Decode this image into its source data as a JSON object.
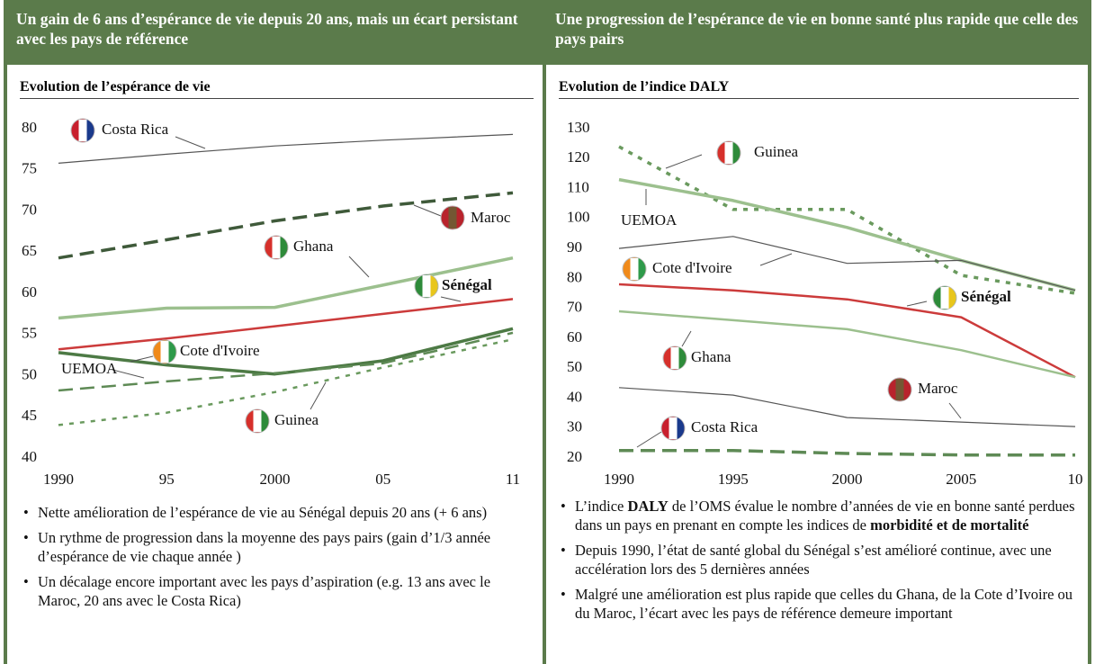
{
  "chart_data": [
    {
      "type": "line",
      "title": "Un gain de 6 ans d’espérance de vie depuis 20 ans, mais un écart persistant avec les pays de référence",
      "subtitle": "Evolution de l’espérance de vie",
      "x": [
        1990,
        1995,
        2000,
        2005,
        2011
      ],
      "xlim": [
        1990,
        2011
      ],
      "xticks": [
        1990,
        {
          "value": 1995,
          "label": "95"
        },
        2000,
        {
          "value": 2005,
          "label": "05"
        },
        {
          "value": 2011,
          "label": "11"
        }
      ],
      "ylim": [
        40,
        80
      ],
      "yticks": [
        40,
        45,
        50,
        55,
        60,
        65,
        70,
        75,
        80
      ],
      "series": [
        {
          "name": "Costa Rica",
          "color": "#555555",
          "line_style": "solid",
          "weight": "thin",
          "values": [
            75.8,
            76.9,
            77.9,
            78.6,
            79.3
          ]
        },
        {
          "name": "Maroc",
          "color": "#3f5a3a",
          "line_style": "dashed",
          "weight": "thick",
          "values": [
            64.3,
            66.5,
            68.8,
            70.6,
            72.2
          ]
        },
        {
          "name": "Ghana",
          "color": "#9cc08e",
          "line_style": "solid",
          "weight": "thick",
          "values": [
            57.0,
            58.2,
            58.3,
            61.0,
            64.3
          ]
        },
        {
          "name": "Sénégal",
          "color": "#cc3b3b",
          "line_style": "solid",
          "weight": "medium",
          "values": [
            53.2,
            54.5,
            56.0,
            57.5,
            59.3
          ]
        },
        {
          "name": "Cote d'Ivoire",
          "color": "#4d7a45",
          "line_style": "solid",
          "weight": "thick",
          "values": [
            52.8,
            51.3,
            50.2,
            51.8,
            55.7
          ]
        },
        {
          "name": "UEMOA",
          "color": "#5e8a55",
          "line_style": "dashed",
          "weight": "medium",
          "values": [
            48.2,
            49.3,
            50.3,
            51.5,
            55.2
          ]
        },
        {
          "name": "Guinea",
          "color": "#6a9a5e",
          "line_style": "dotted",
          "weight": "medium",
          "values": [
            44.0,
            45.5,
            48.0,
            51.0,
            54.4
          ]
        }
      ],
      "notes": [
        [
          "Nette amélioration de l’espérance de vie au Sénégal depuis 20 ans (+ 6 ans)"
        ],
        [
          "Un rythme de progression dans la moyenne des pays pairs (gain  d’1/3 année d’espérance de vie chaque année )"
        ],
        [
          "Un décalage encore important avec les pays d’aspiration (e.g. 13 ans avec le Maroc, 20 ans avec le Costa Rica)"
        ]
      ]
    },
    {
      "type": "line",
      "title": "Une progression de l’espérance de vie en bonne santé plus rapide que celle des pays pairs",
      "subtitle": "Evolution de l’indice DALY",
      "x": [
        1990,
        1995,
        2000,
        2005,
        2010
      ],
      "xlim": [
        1990,
        2010
      ],
      "xticks": [
        1990,
        1995,
        2000,
        2005,
        {
          "value": 2010,
          "label": "10"
        }
      ],
      "ylim": [
        20,
        130
      ],
      "yticks": [
        20,
        30,
        40,
        50,
        60,
        70,
        80,
        90,
        100,
        110,
        120,
        130
      ],
      "series": [
        {
          "name": "Guinea",
          "color": "#6a9a5e",
          "line_style": "dotted",
          "weight": "thick",
          "values": [
            124,
            103,
            103,
            81,
            75
          ]
        },
        {
          "name": "UEMOA",
          "color": "#9cc08e",
          "line_style": "solid",
          "weight": "thick",
          "values": [
            113,
            106,
            97,
            86,
            76
          ]
        },
        {
          "name": "Cote d'Ivoire",
          "color": "#555555",
          "line_style": "solid",
          "weight": "thin",
          "values": [
            90,
            94,
            85,
            86,
            76
          ]
        },
        {
          "name": "Sénégal",
          "color": "#cc3b3b",
          "line_style": "solid",
          "weight": "medium",
          "values": [
            78,
            76,
            73,
            67,
            47
          ]
        },
        {
          "name": "Ghana",
          "color": "#9cc08e",
          "line_style": "solid",
          "weight": "medium",
          "values": [
            69,
            66,
            63,
            56,
            47
          ]
        },
        {
          "name": "Maroc",
          "color": "#555555",
          "line_style": "solid",
          "weight": "thin",
          "values": [
            43.5,
            41,
            33.5,
            32,
            30.5
          ]
        },
        {
          "name": "Costa Rica",
          "color": "#5e8a55",
          "line_style": "dashed",
          "weight": "thick",
          "values": [
            22.5,
            22.5,
            21.5,
            21,
            21
          ]
        }
      ],
      "notes": [
        [
          "L’indice ",
          "DALY",
          " de l’OMS évalue le nombre d’années de vie en bonne santé perdues dans un pays en prenant en compte les indices de ",
          "morbidité et de mortalité"
        ],
        [
          "Depuis 1990, l’état de santé global du Sénégal s’est amélioré continue, avec une accélération lors des 5 dernières années"
        ],
        [
          "Malgré une amélioration est plus rapide que celles du Ghana, de la Cote d’Ivoire ou du Maroc, l’écart avec les pays de référence demeure important"
        ]
      ]
    }
  ]
}
